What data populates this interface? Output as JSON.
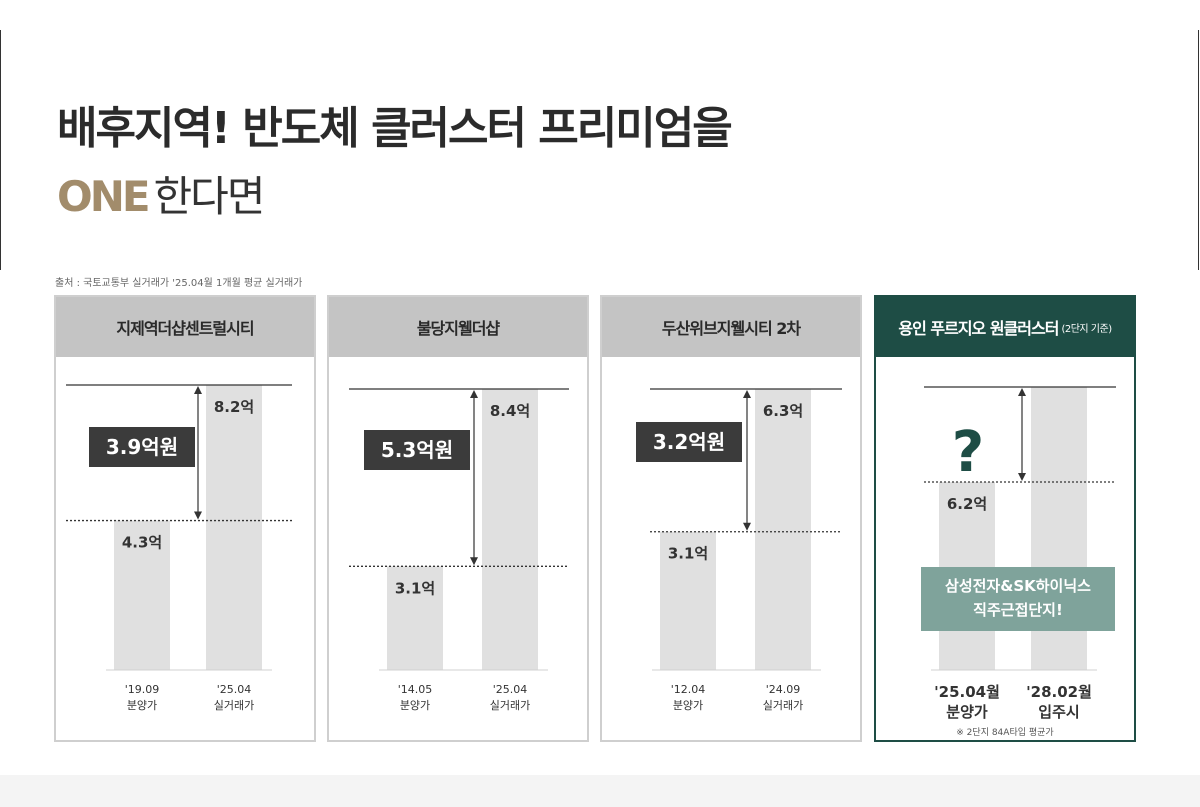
{
  "headline": "배후지역! 반도체 클러스터 프리미엄을",
  "subline": {
    "accent": "ONE",
    "rest": "한다면"
  },
  "source": "출처 : 국토교통부 실거래가 '25.04월 1개월 평균 실거래가",
  "colors": {
    "accent": "#a28c6b",
    "featured": "#1e4d45",
    "bar": "#e0e0e0",
    "badge": "#3b3b3b",
    "callout": "#7fa39b"
  },
  "chart_data": [
    {
      "type": "bar",
      "title": "지제역더샵센트럴시티",
      "categories": [
        [
          "'19.09",
          "분양가"
        ],
        [
          "'25.04",
          "실거래가"
        ]
      ],
      "values": [
        4.3,
        8.2
      ],
      "value_labels": [
        "4.3억",
        "8.2억"
      ],
      "difference_label": "3.9억원"
    },
    {
      "type": "bar",
      "title": "불당지웰더샵",
      "categories": [
        [
          "'14.05",
          "분양가"
        ],
        [
          "'25.04",
          "실거래가"
        ]
      ],
      "values": [
        3.1,
        8.4
      ],
      "value_labels": [
        "3.1억",
        "8.4억"
      ],
      "difference_label": "5.3억원"
    },
    {
      "type": "bar",
      "title": "두산위브지웰시티 2차",
      "categories": [
        [
          "'12.04",
          "분양가"
        ],
        [
          "'24.09",
          "실거래가"
        ]
      ],
      "values": [
        3.1,
        6.3
      ],
      "value_labels": [
        "3.1억",
        "6.3억"
      ],
      "difference_label": "3.2억원"
    },
    {
      "type": "bar",
      "title": "용인 푸르지오 원클러스터",
      "title_note": "(2단지 기준)",
      "categories": [
        [
          "'25.04월",
          "분양가"
        ],
        [
          "'28.02월",
          "입주시"
        ]
      ],
      "values": [
        6.2,
        null
      ],
      "value_labels": [
        "6.2억",
        ""
      ],
      "difference_label": "?",
      "callout": [
        "삼성전자&SK하이닉스",
        "직주근접단지!"
      ],
      "footnote": "※ 2단지 84A타입 평균가"
    }
  ]
}
